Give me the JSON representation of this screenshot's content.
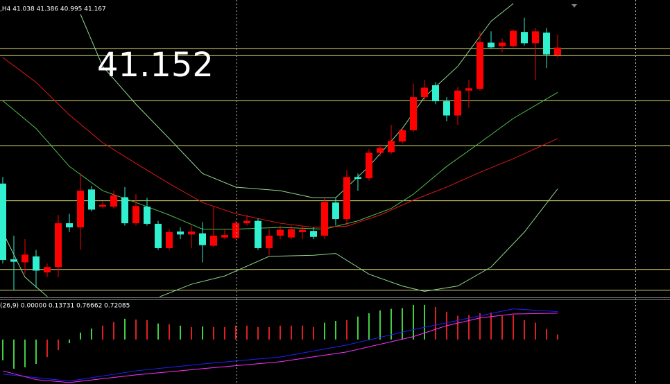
{
  "chart_data": [
    {
      "type": "candlestick",
      "header": ",H4  41.038 41.386 40.995 41.167",
      "annotation": "41.152",
      "ylim": [
        36.96,
        41.97
      ],
      "up_color": "#ff0000",
      "down_color": "#30f0d0",
      "open": [
        38.87,
        37.59,
        37.54,
        37.64,
        37.37,
        37.46,
        38.2,
        38.13,
        38.77,
        38.48,
        38.48,
        38.64,
        38.2,
        38.48,
        38.19,
        37.78,
        38.06,
        38.01,
        38.03,
        37.82,
        37.96,
        37.95,
        38.2,
        38.24,
        37.78,
        37.99,
        37.96,
        38.05,
        38.07,
        37.99,
        38.55,
        38.27,
        38.98,
        38.96,
        39.39,
        39.4,
        39.58,
        39.77,
        40.33,
        40.53,
        40.26,
        40.02,
        40.44,
        40.47,
        41.25,
        41.19,
        41.19,
        41.43,
        41.24,
        41.42,
        41.038
      ],
      "high": [
        38.98,
        37.99,
        37.93,
        37.75,
        37.52,
        38.34,
        38.36,
        39.04,
        38.83,
        38.57,
        38.75,
        38.81,
        38.69,
        38.63,
        38.24,
        38.1,
        38.13,
        38.16,
        38.22,
        38.48,
        38.1,
        38.24,
        38.34,
        38.28,
        38.1,
        38.16,
        38.16,
        38.16,
        38.13,
        38.63,
        38.63,
        39.1,
        39.04,
        39.45,
        39.53,
        39.86,
        39.8,
        40.56,
        40.62,
        40.58,
        40.33,
        40.5,
        40.62,
        41.44,
        41.44,
        41.32,
        41.47,
        41.67,
        41.5,
        41.5,
        41.386
      ],
      "low": [
        37.52,
        37.07,
        37.34,
        37.11,
        37.29,
        37.29,
        38.05,
        37.75,
        38.4,
        38.45,
        38.45,
        38.16,
        38.16,
        38.16,
        37.75,
        37.75,
        37.93,
        37.78,
        37.54,
        37.8,
        37.93,
        37.93,
        38.16,
        37.75,
        37.66,
        37.93,
        37.93,
        37.93,
        37.93,
        37.93,
        38.16,
        38.16,
        38.75,
        38.92,
        39.33,
        39.37,
        39.55,
        39.74,
        40.27,
        40.21,
        39.92,
        39.86,
        40.15,
        40.44,
        41.15,
        41.09,
        41.17,
        41.2,
        40.62,
        40.82,
        40.995
      ],
      "close": [
        37.58,
        37.55,
        37.67,
        37.4,
        37.46,
        38.2,
        38.13,
        38.75,
        38.43,
        38.51,
        38.67,
        38.2,
        38.49,
        38.19,
        37.78,
        38.05,
        38.01,
        38.06,
        37.83,
        37.99,
        38.0,
        38.2,
        38.24,
        37.78,
        37.99,
        38.09,
        38.1,
        38.09,
        37.97,
        38.56,
        38.27,
        38.98,
        38.95,
        39.39,
        39.47,
        39.59,
        39.77,
        40.33,
        40.49,
        40.26,
        40.02,
        40.44,
        40.48,
        41.26,
        41.17,
        41.25,
        41.45,
        41.24,
        41.44,
        41.05,
        41.167
      ],
      "levels": [
        41.15,
        41.03,
        40.27,
        39.51,
        38.58,
        37.42,
        37.07
      ],
      "level_color": "#e0e070",
      "lines": [
        {
          "color": "#90d890",
          "x": [
            7,
            9,
            12,
            15,
            18,
            21,
            25,
            28,
            30,
            33,
            36,
            38,
            41,
            44,
            46
          ],
          "values": [
            41.73,
            40.85,
            40.21,
            39.63,
            39.04,
            38.81,
            38.75,
            38.63,
            38.63,
            39.16,
            39.8,
            40.33,
            40.85,
            41.61,
            41.91
          ]
        },
        {
          "color": "#50c050",
          "x": [
            0,
            3,
            6,
            9,
            12,
            15,
            18,
            21,
            25,
            29,
            32,
            35,
            37,
            40,
            43,
            46,
            50
          ],
          "values": [
            40.27,
            39.8,
            39.16,
            38.75,
            38.55,
            38.34,
            38.1,
            38.1,
            38.13,
            38.1,
            38.24,
            38.45,
            38.69,
            39.16,
            39.56,
            39.97,
            40.41
          ]
        },
        {
          "color": "#90d890",
          "x": [
            0,
            2,
            5,
            12,
            17,
            20,
            24,
            28,
            30,
            33,
            36,
            38,
            41,
            44,
            47,
            50
          ],
          "values": [
            38.05,
            37.29,
            36.8,
            36.8,
            37.17,
            37.31,
            37.64,
            37.66,
            37.69,
            37.34,
            37.14,
            37.05,
            37.14,
            37.46,
            38.05,
            38.78
          ]
        },
        {
          "color": "#e01818",
          "x": [
            0,
            3,
            6,
            9,
            12,
            15,
            18,
            21,
            25,
            28,
            31,
            34,
            37,
            40,
            43,
            46,
            50
          ],
          "values": [
            41.0,
            40.58,
            40.03,
            39.56,
            39.21,
            38.87,
            38.55,
            38.36,
            38.2,
            38.13,
            38.15,
            38.34,
            38.59,
            38.81,
            39.06,
            39.29,
            39.63
          ]
        }
      ]
    },
    {
      "type": "macd",
      "header": "(26,9) 0.00000 0.13731 0.76662 0.72085",
      "ylim": [
        -1.22,
        1.08
      ],
      "histogram": {
        "values": [
          -0.57,
          -0.8,
          -0.76,
          -0.67,
          -0.48,
          -0.29,
          -0.1,
          0.19,
          0.3,
          0.38,
          0.48,
          0.57,
          0.55,
          0.53,
          0.44,
          0.42,
          0.38,
          0.34,
          0.36,
          0.34,
          0.34,
          0.38,
          0.38,
          0.34,
          0.34,
          0.38,
          0.38,
          0.38,
          0.34,
          0.46,
          0.51,
          0.53,
          0.63,
          0.72,
          0.8,
          0.84,
          0.86,
          0.95,
          0.95,
          0.89,
          0.76,
          0.65,
          0.67,
          0.72,
          0.74,
          0.65,
          0.67,
          0.53,
          0.46,
          0.29,
          0.13731
        ],
        "colors": [
          "#40d040",
          "#40d040",
          "#40d040",
          "#40d040",
          "#e02020",
          "#e02020",
          "#40d040",
          "#40d040",
          "#40d040",
          "#e02020",
          "#e02020",
          "#40d040",
          "#e02020",
          "#e02020",
          "#40d040",
          "#e02020",
          "#40d040",
          "#e02020",
          "#40d040",
          "#e02020",
          "#e02020",
          "#e02020",
          "#e02020",
          "#e02020",
          "#e02020",
          "#e02020",
          "#e02020",
          "#e02020",
          "#e02020",
          "#40d040",
          "#40d040",
          "#e02020",
          "#40d040",
          "#40d040",
          "#40d040",
          "#40d040",
          "#40d040",
          "#40d040",
          "#40d040",
          "#e02020",
          "#e02020",
          "#e02020",
          "#e02020",
          "#e02020",
          "#e02020",
          "#e02020",
          "#e02020",
          "#e02020",
          "#e02020",
          "#e02020",
          "#e02020"
        ]
      },
      "series": [
        {
          "color": "#2020ff",
          "x": [
            0,
            6,
            12,
            18,
            25,
            31,
            37,
            43,
            46,
            50
          ],
          "values": [
            -0.95,
            -1.14,
            -0.86,
            -0.67,
            -0.48,
            -0.15,
            0.27,
            0.65,
            0.84,
            0.76662
          ]
        },
        {
          "color": "#ff30ff",
          "x": [
            0,
            3,
            6,
            12,
            18,
            25,
            31,
            37,
            40,
            43,
            46,
            50
          ],
          "values": [
            -0.86,
            -1.1,
            -1.18,
            -0.97,
            -0.8,
            -0.61,
            -0.34,
            0.08,
            0.38,
            0.59,
            0.7,
            0.72085
          ]
        }
      ]
    }
  ]
}
